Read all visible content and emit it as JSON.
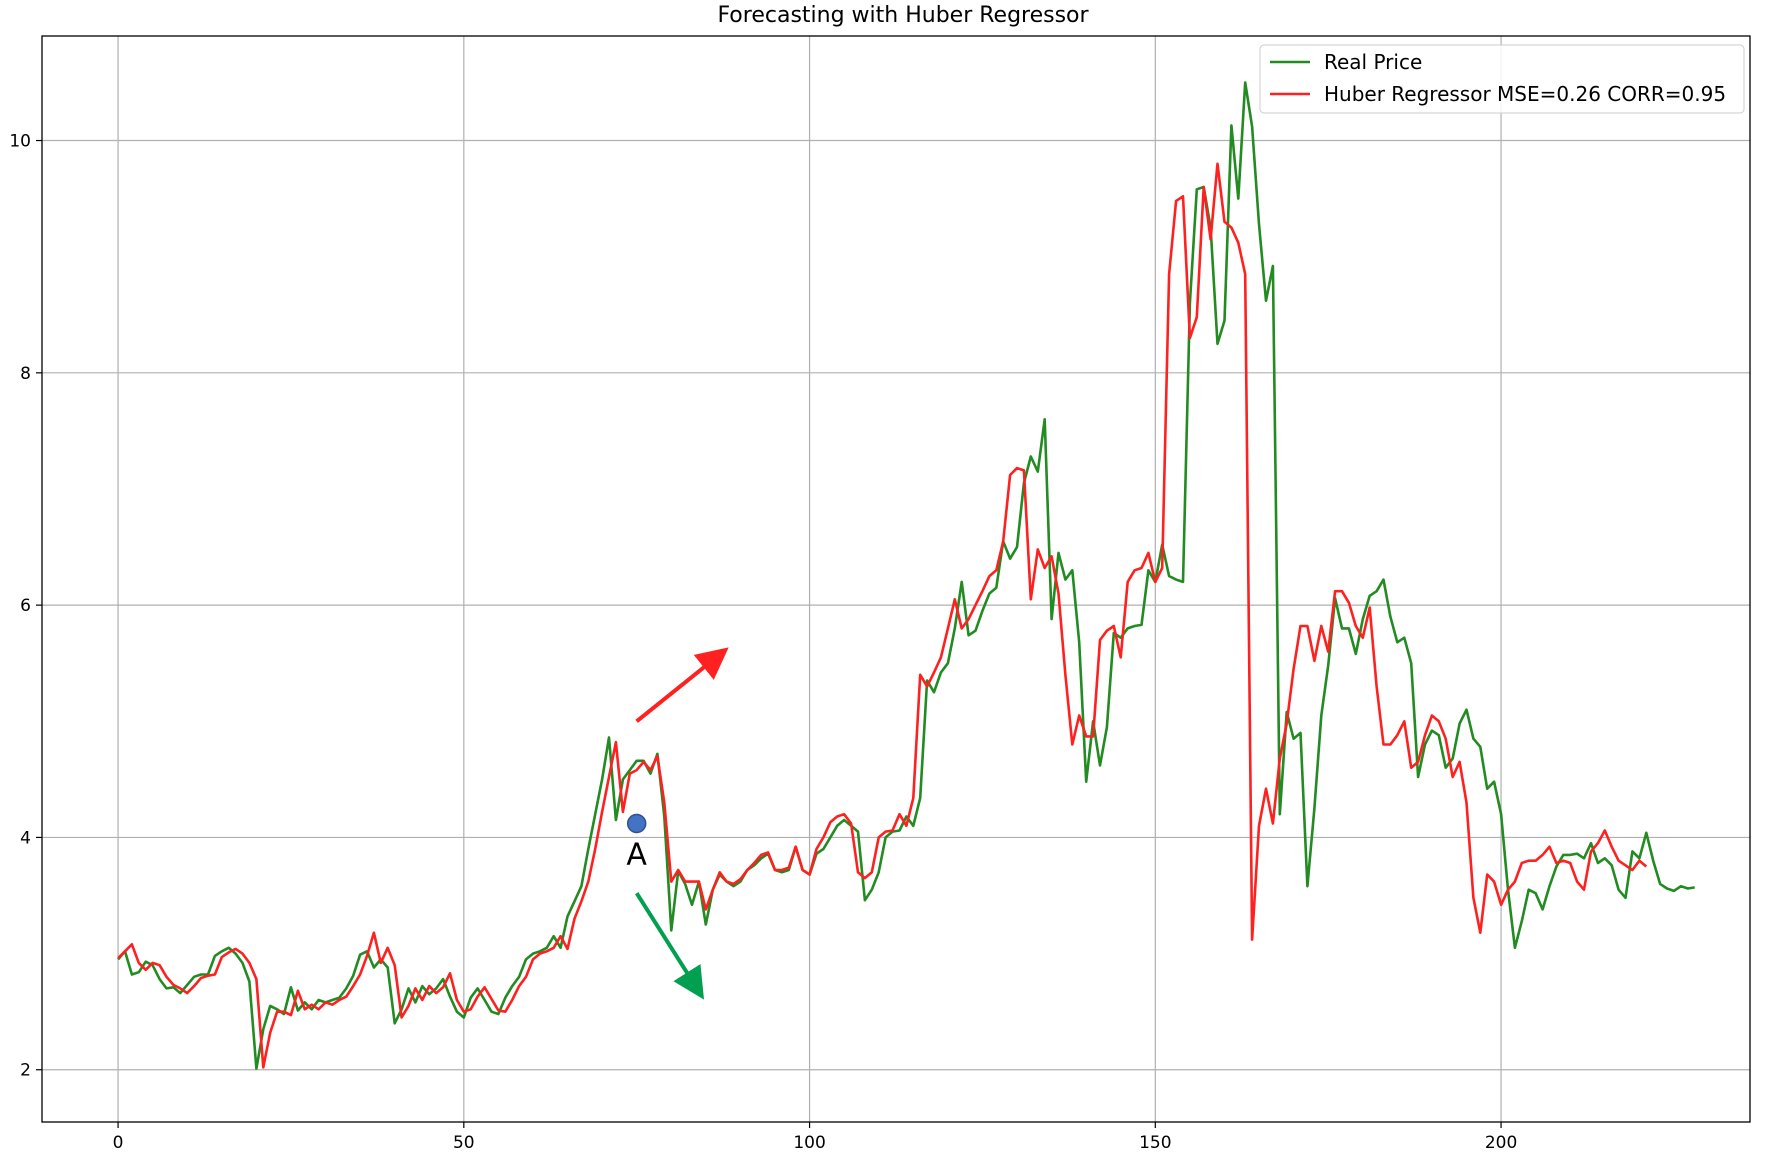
{
  "chart_data": {
    "type": "line",
    "title": "Forecasting with Huber Regressor",
    "xlabel": "",
    "ylabel": "",
    "xlim": [
      -11,
      236
    ],
    "ylim": [
      1.55,
      10.9
    ],
    "xticks": [
      0,
      50,
      100,
      150,
      200
    ],
    "yticks": [
      2,
      4,
      6,
      8,
      10
    ],
    "grid": true,
    "legend_position": "top-right",
    "colors": {
      "real": "#228B22",
      "pred": "#FF2020",
      "marker": "#4472C4",
      "up_arrow": "#FF2020",
      "down_arrow": "#00A050"
    },
    "series": [
      {
        "name": "Real Price",
        "color": "#228B22",
        "values": [
          2.95,
          3.02,
          2.82,
          2.84,
          2.93,
          2.9,
          2.78,
          2.7,
          2.71,
          2.66,
          2.73,
          2.8,
          2.82,
          2.82,
          2.98,
          3.02,
          3.05,
          3.0,
          2.92,
          2.76,
          2.01,
          2.35,
          2.55,
          2.52,
          2.48,
          2.71,
          2.51,
          2.58,
          2.52,
          2.6,
          2.58,
          2.6,
          2.62,
          2.7,
          2.81,
          2.99,
          3.02,
          2.88,
          2.95,
          2.88,
          2.4,
          2.52,
          2.7,
          2.58,
          2.72,
          2.65,
          2.7,
          2.78,
          2.63,
          2.5,
          2.45,
          2.62,
          2.7,
          2.6,
          2.5,
          2.48,
          2.62,
          2.72,
          2.8,
          2.95,
          3.0,
          3.02,
          3.05,
          3.15,
          3.05,
          3.32,
          3.45,
          3.58,
          3.9,
          4.2,
          4.5,
          4.86,
          4.15,
          4.5,
          4.58,
          4.66,
          4.66,
          4.55,
          4.72,
          4.18,
          3.2,
          3.71,
          3.6,
          3.42,
          3.62,
          3.25,
          3.55,
          3.68,
          3.62,
          3.58,
          3.62,
          3.72,
          3.76,
          3.82,
          3.86,
          3.72,
          3.7,
          3.72,
          3.92,
          3.72,
          3.68,
          3.86,
          3.9,
          4.0,
          4.1,
          4.15,
          4.1,
          4.05,
          3.46,
          3.55,
          3.7,
          4.0,
          4.05,
          4.06,
          4.18,
          4.1,
          4.34,
          5.35,
          5.25,
          5.42,
          5.5,
          5.8,
          6.2,
          5.74,
          5.78,
          5.95,
          6.1,
          6.15,
          6.55,
          6.4,
          6.5,
          7.05,
          7.28,
          7.15,
          7.6,
          5.88,
          6.45,
          6.22,
          6.3,
          5.68,
          4.48,
          5.0,
          4.62,
          4.95,
          5.76,
          5.72,
          5.8,
          5.82,
          5.83,
          6.3,
          6.2,
          6.52,
          6.25,
          6.22,
          6.2,
          8.6,
          9.58,
          9.6,
          9.25,
          8.25,
          8.45,
          10.13,
          9.5,
          10.5,
          10.12,
          9.28,
          8.62,
          8.92,
          4.2,
          5.08,
          4.85,
          4.9,
          3.58,
          4.25,
          5.05,
          5.48,
          6.06,
          5.8,
          5.8,
          5.58,
          5.88,
          6.08,
          6.12,
          6.22,
          5.9,
          5.68,
          5.72,
          5.5,
          4.52,
          4.8,
          4.92,
          4.88,
          4.6,
          4.68,
          4.98,
          5.1,
          4.85,
          4.78,
          4.42,
          4.48,
          4.2,
          3.55,
          3.05,
          3.28,
          3.55,
          3.52,
          3.38,
          3.58,
          3.75,
          3.85,
          3.85,
          3.86,
          3.82,
          3.95,
          3.78,
          3.82,
          3.76,
          3.55,
          3.48,
          3.88,
          3.82,
          4.04,
          3.8,
          3.6,
          3.56,
          3.54,
          3.58,
          3.56,
          3.57
        ]
      },
      {
        "name": "Huber Regressor MSE=0.26 CORR=0.95",
        "color": "#FF2020",
        "values": [
          2.96,
          3.02,
          3.08,
          2.92,
          2.86,
          2.92,
          2.9,
          2.8,
          2.73,
          2.7,
          2.66,
          2.72,
          2.79,
          2.81,
          2.82,
          2.97,
          3.01,
          3.04,
          3.0,
          2.92,
          2.78,
          2.02,
          2.32,
          2.5,
          2.5,
          2.47,
          2.68,
          2.52,
          2.56,
          2.52,
          2.58,
          2.56,
          2.6,
          2.63,
          2.72,
          2.82,
          2.98,
          3.18,
          2.92,
          3.05,
          2.9,
          2.45,
          2.55,
          2.7,
          2.6,
          2.72,
          2.66,
          2.71,
          2.83,
          2.6,
          2.5,
          2.52,
          2.63,
          2.71,
          2.61,
          2.51,
          2.5,
          2.6,
          2.72,
          2.8,
          2.95,
          3.0,
          3.02,
          3.05,
          3.15,
          3.04,
          3.3,
          3.45,
          3.62,
          3.9,
          4.22,
          4.52,
          4.82,
          4.22,
          4.55,
          4.58,
          4.65,
          4.58,
          4.7,
          4.3,
          3.62,
          3.72,
          3.62,
          3.62,
          3.62,
          3.38,
          3.55,
          3.7,
          3.62,
          3.6,
          3.64,
          3.72,
          3.78,
          3.85,
          3.87,
          3.72,
          3.72,
          3.74,
          3.92,
          3.72,
          3.68,
          3.9,
          4.0,
          4.13,
          4.18,
          4.2,
          4.12,
          3.7,
          3.65,
          3.7,
          4.0,
          4.05,
          4.06,
          4.2,
          4.1,
          4.34,
          5.4,
          5.3,
          5.42,
          5.55,
          5.8,
          6.05,
          5.8,
          5.88,
          6.0,
          6.12,
          6.25,
          6.3,
          6.55,
          7.12,
          7.18,
          7.16,
          6.05,
          6.48,
          6.32,
          6.42,
          6.1,
          5.4,
          4.8,
          5.05,
          4.87,
          4.87,
          5.7,
          5.78,
          5.82,
          5.55,
          6.2,
          6.3,
          6.32,
          6.45,
          6.2,
          6.32,
          8.85,
          9.48,
          9.52,
          8.3,
          8.48,
          9.6,
          9.15,
          9.8,
          9.3,
          9.25,
          9.12,
          8.85,
          3.12,
          4.1,
          4.42,
          4.12,
          4.68,
          4.98,
          5.45,
          5.82,
          5.82,
          5.52,
          5.82,
          5.6,
          6.12,
          6.12,
          6.02,
          5.82,
          5.72,
          5.98,
          5.3,
          4.8,
          4.8,
          4.88,
          5.0,
          4.6,
          4.65,
          4.88,
          5.05,
          5.0,
          4.85,
          4.52,
          4.65,
          4.3,
          3.48,
          3.18,
          3.68,
          3.62,
          3.42,
          3.55,
          3.62,
          3.78,
          3.8,
          3.8,
          3.85,
          3.92,
          3.78,
          3.8,
          3.78,
          3.62,
          3.55,
          3.88,
          3.95,
          4.06,
          3.92,
          3.8,
          3.76,
          3.72,
          3.8,
          3.75
        ]
      }
    ],
    "annotations": [
      {
        "type": "point",
        "label": "A",
        "x": 75,
        "y": 4.12
      },
      {
        "type": "arrow",
        "direction": "up",
        "from": [
          75,
          5.0
        ],
        "to": [
          86.5,
          5.55
        ]
      },
      {
        "type": "arrow",
        "direction": "down",
        "from": [
          75,
          3.52
        ],
        "to": [
          83.5,
          2.72
        ]
      }
    ]
  }
}
